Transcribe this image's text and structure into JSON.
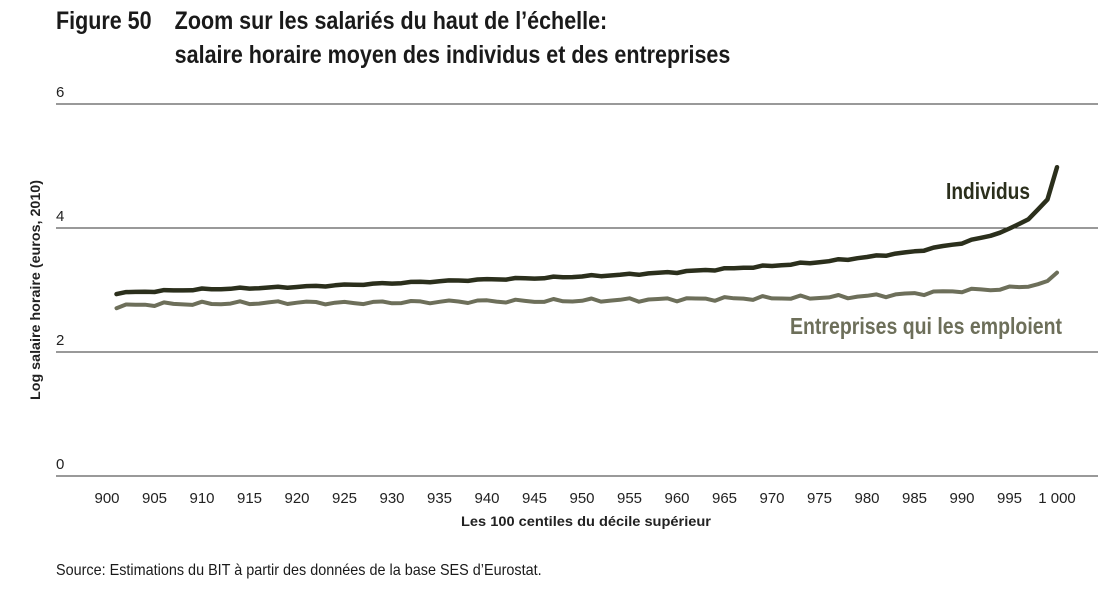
{
  "figure": {
    "number": "Figure 50",
    "title_line1": "Zoom sur les salariés du haut de l’échelle:",
    "title_line2": "salaire horaire moyen des individus et des entreprises"
  },
  "source": "Source: Estimations du BIT à partir des données de la base SES d’Eurostat.",
  "chart_data": {
    "type": "line",
    "title": "Zoom sur les salariés du haut de l’échelle: salaire horaire moyen des individus et des entreprises",
    "xlabel": "Les 100 centiles du décile supérieur",
    "ylabel": "Log salaire horaire (euros, 2010)",
    "xlim": [
      900,
      1000
    ],
    "ylim": [
      0,
      6
    ],
    "x_ticks": [
      "900",
      "905",
      "910",
      "915",
      "920",
      "925",
      "930",
      "935",
      "940",
      "945",
      "950",
      "955",
      "960",
      "965",
      "970",
      "975",
      "980",
      "985",
      "990",
      "995",
      "1 000"
    ],
    "y_ticks": [
      "0",
      "2",
      "4",
      "6"
    ],
    "grid": true,
    "x": [
      901,
      905,
      910,
      915,
      920,
      925,
      930,
      935,
      940,
      945,
      950,
      955,
      960,
      965,
      970,
      975,
      980,
      985,
      990,
      993,
      995,
      997,
      999,
      1000
    ],
    "series": [
      {
        "name": "Individus",
        "color": "#2b2f1c",
        "values": [
          2.95,
          2.98,
          3.01,
          3.03,
          3.05,
          3.08,
          3.11,
          3.14,
          3.17,
          3.19,
          3.22,
          3.25,
          3.29,
          3.34,
          3.39,
          3.45,
          3.53,
          3.62,
          3.76,
          3.88,
          3.98,
          4.15,
          4.45,
          4.98
        ]
      },
      {
        "name": "Entreprises qui les emploient",
        "color": "#6d6f5a",
        "values": [
          2.74,
          2.77,
          2.78,
          2.79,
          2.8,
          2.79,
          2.8,
          2.81,
          2.82,
          2.82,
          2.83,
          2.84,
          2.85,
          2.86,
          2.87,
          2.88,
          2.9,
          2.94,
          2.99,
          3.01,
          3.03,
          3.07,
          3.12,
          3.28
        ]
      }
    ]
  }
}
